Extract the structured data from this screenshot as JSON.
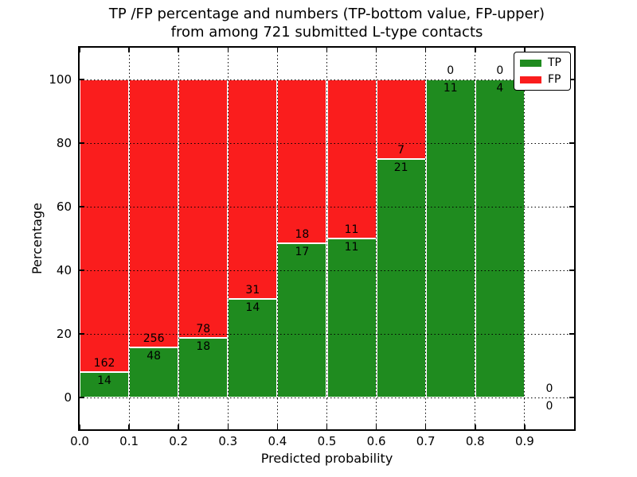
{
  "title": {
    "line1": "TP /FP percentage and numbers (TP-bottom value, FP-upper)",
    "line2": "from among 721 submitted L-type contacts"
  },
  "axes": {
    "xlabel": "Predicted probability",
    "ylabel": "Percentage",
    "xticks": [
      "0.0",
      "0.1",
      "0.2",
      "0.3",
      "0.4",
      "0.5",
      "0.6",
      "0.7",
      "0.8",
      "0.9"
    ],
    "yticks": [
      0,
      20,
      40,
      60,
      80,
      100
    ]
  },
  "legend": {
    "items": [
      {
        "label": "TP",
        "color": "#1f8b1f"
      },
      {
        "label": "FP",
        "color": "#fa1d1d"
      }
    ]
  },
  "colors": {
    "tp": "#1f8b1f",
    "fp": "#fa1d1d",
    "bar_edge": "#ffffff",
    "grid": "#000000",
    "background": "#ffffff"
  },
  "chart_data": {
    "type": "bar",
    "stacked": true,
    "normalized_to_percent": true,
    "title": "TP /FP percentage and numbers (TP-bottom value, FP-upper) from among 721 submitted L-type contacts",
    "xlabel": "Predicted probability",
    "ylabel": "Percentage",
    "total_contacts": 721,
    "xlim": [
      0.0,
      1.0
    ],
    "ylim": [
      -10,
      110
    ],
    "grid": "dotted",
    "legend_position": "upper right",
    "bins": [
      {
        "range": [
          0.0,
          0.1
        ],
        "tp": 14,
        "fp": 162
      },
      {
        "range": [
          0.1,
          0.2
        ],
        "tp": 48,
        "fp": 256
      },
      {
        "range": [
          0.2,
          0.3
        ],
        "tp": 18,
        "fp": 78
      },
      {
        "range": [
          0.3,
          0.4
        ],
        "tp": 14,
        "fp": 31
      },
      {
        "range": [
          0.4,
          0.5
        ],
        "tp": 17,
        "fp": 18
      },
      {
        "range": [
          0.5,
          0.6
        ],
        "tp": 11,
        "fp": 11
      },
      {
        "range": [
          0.6,
          0.7
        ],
        "tp": 21,
        "fp": 7
      },
      {
        "range": [
          0.7,
          0.8
        ],
        "tp": 11,
        "fp": 0
      },
      {
        "range": [
          0.8,
          0.9
        ],
        "tp": 4,
        "fp": 0
      },
      {
        "range": [
          0.9,
          1.0
        ],
        "tp": 0,
        "fp": 0
      }
    ],
    "series": [
      {
        "name": "TP",
        "color": "#1f8b1f",
        "counts": [
          14,
          48,
          18,
          14,
          17,
          11,
          21,
          11,
          4,
          0
        ]
      },
      {
        "name": "FP",
        "color": "#fa1d1d",
        "counts": [
          162,
          256,
          78,
          31,
          18,
          11,
          7,
          0,
          0,
          0
        ]
      }
    ]
  }
}
